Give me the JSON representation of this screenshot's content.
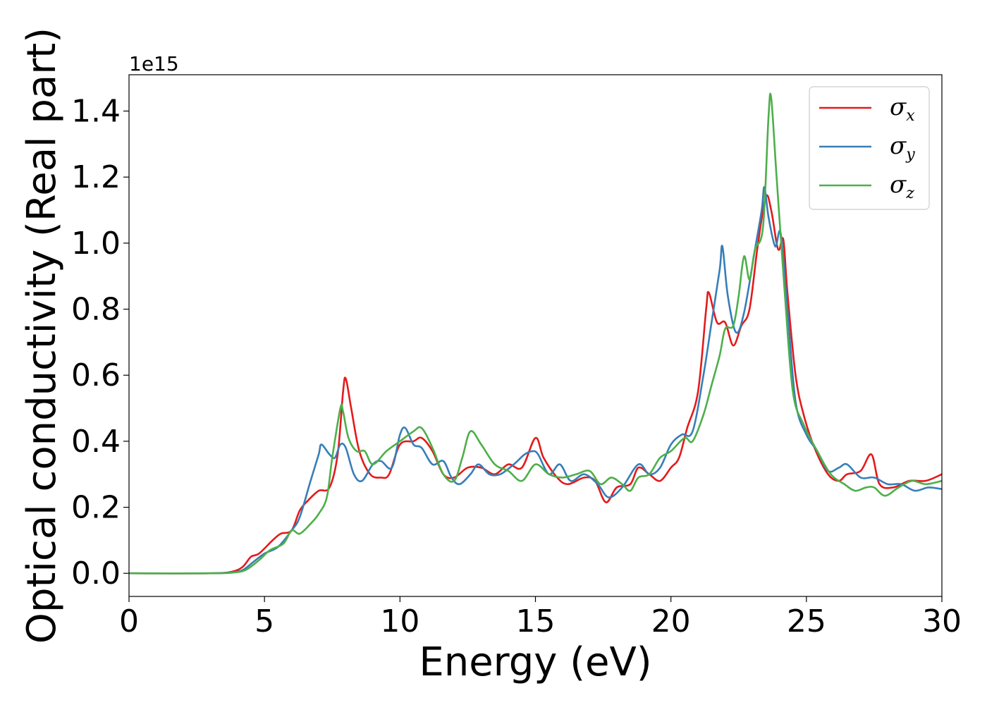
{
  "chart_data": {
    "type": "line",
    "xlabel": "Energy (eV)",
    "ylabel": "Optical conductivity (Real part)",
    "offset_text": "1e15",
    "xlim": [
      0,
      30
    ],
    "ylim": [
      -0.07,
      1.51
    ],
    "y_scale_factor": 1000000000000000.0,
    "x_ticks": [
      0,
      5,
      10,
      15,
      20,
      25,
      30
    ],
    "x_tick_labels": [
      "0",
      "5",
      "10",
      "15",
      "20",
      "25",
      "30"
    ],
    "y_ticks": [
      0.0,
      0.2,
      0.4,
      0.6,
      0.8,
      1.0,
      1.2,
      1.4
    ],
    "y_tick_labels": [
      "0.0",
      "0.2",
      "0.4",
      "0.6",
      "0.8",
      "1.0",
      "1.2",
      "1.4"
    ],
    "grid": false,
    "legend_position": "top-right",
    "series": [
      {
        "name": "σx",
        "symbol": "σ",
        "subscript": "x",
        "color": "#e41a1c",
        "points": [
          [
            0,
            0
          ],
          [
            3,
            0
          ],
          [
            3.8,
            0.005
          ],
          [
            4.2,
            0.02
          ],
          [
            4.5,
            0.05
          ],
          [
            4.8,
            0.06
          ],
          [
            5.3,
            0.1
          ],
          [
            5.6,
            0.12
          ],
          [
            6,
            0.13
          ],
          [
            6.3,
            0.19
          ],
          [
            6.6,
            0.22
          ],
          [
            7,
            0.25
          ],
          [
            7.4,
            0.26
          ],
          [
            7.7,
            0.36
          ],
          [
            7.9,
            0.55
          ],
          [
            8.0,
            0.59
          ],
          [
            8.2,
            0.5
          ],
          [
            8.5,
            0.37
          ],
          [
            8.9,
            0.3
          ],
          [
            9.3,
            0.29
          ],
          [
            9.6,
            0.3
          ],
          [
            10,
            0.39
          ],
          [
            10.5,
            0.4
          ],
          [
            10.8,
            0.41
          ],
          [
            11.2,
            0.37
          ],
          [
            11.6,
            0.3
          ],
          [
            12,
            0.29
          ],
          [
            12.5,
            0.32
          ],
          [
            13,
            0.32
          ],
          [
            13.5,
            0.3
          ],
          [
            14,
            0.33
          ],
          [
            14.5,
            0.32
          ],
          [
            15.0,
            0.41
          ],
          [
            15.3,
            0.35
          ],
          [
            15.8,
            0.29
          ],
          [
            16.2,
            0.27
          ],
          [
            16.8,
            0.29
          ],
          [
            17.2,
            0.28
          ],
          [
            17.6,
            0.215
          ],
          [
            18,
            0.26
          ],
          [
            18.5,
            0.27
          ],
          [
            18.8,
            0.32
          ],
          [
            19.2,
            0.3
          ],
          [
            19.6,
            0.28
          ],
          [
            20,
            0.32
          ],
          [
            20.3,
            0.35
          ],
          [
            20.6,
            0.44
          ],
          [
            21,
            0.55
          ],
          [
            21.3,
            0.8
          ],
          [
            21.4,
            0.85
          ],
          [
            21.7,
            0.76
          ],
          [
            22,
            0.76
          ],
          [
            22.3,
            0.69
          ],
          [
            22.6,
            0.75
          ],
          [
            22.9,
            0.8
          ],
          [
            23.2,
            0.99
          ],
          [
            23.5,
            1.14
          ],
          [
            23.7,
            1.1
          ],
          [
            23.9,
            1.0
          ],
          [
            24.0,
            0.98
          ],
          [
            24.15,
            1.01
          ],
          [
            24.3,
            0.85
          ],
          [
            24.6,
            0.6
          ],
          [
            24.9,
            0.48
          ],
          [
            25.3,
            0.38
          ],
          [
            25.8,
            0.3
          ],
          [
            26.2,
            0.28
          ],
          [
            26.5,
            0.3
          ],
          [
            27,
            0.31
          ],
          [
            27.4,
            0.36
          ],
          [
            27.7,
            0.27
          ],
          [
            28.2,
            0.26
          ],
          [
            28.8,
            0.28
          ],
          [
            29.4,
            0.28
          ],
          [
            30,
            0.3
          ]
        ]
      },
      {
        "name": "σy",
        "symbol": "σ",
        "subscript": "y",
        "color": "#377eb8",
        "points": [
          [
            0,
            0
          ],
          [
            3,
            0
          ],
          [
            3.8,
            0.003
          ],
          [
            4.2,
            0.01
          ],
          [
            4.6,
            0.035
          ],
          [
            5,
            0.06
          ],
          [
            5.5,
            0.08
          ],
          [
            6,
            0.13
          ],
          [
            6.3,
            0.17
          ],
          [
            6.7,
            0.28
          ],
          [
            7.0,
            0.36
          ],
          [
            7.1,
            0.39
          ],
          [
            7.4,
            0.36
          ],
          [
            7.6,
            0.35
          ],
          [
            7.8,
            0.39
          ],
          [
            8.0,
            0.38
          ],
          [
            8.3,
            0.3
          ],
          [
            8.6,
            0.28
          ],
          [
            9,
            0.33
          ],
          [
            9.3,
            0.34
          ],
          [
            9.7,
            0.32
          ],
          [
            10.0,
            0.42
          ],
          [
            10.2,
            0.44
          ],
          [
            10.5,
            0.39
          ],
          [
            10.8,
            0.38
          ],
          [
            11.2,
            0.33
          ],
          [
            11.6,
            0.34
          ],
          [
            11.9,
            0.29
          ],
          [
            12.2,
            0.27
          ],
          [
            12.6,
            0.3
          ],
          [
            12.9,
            0.33
          ],
          [
            13.3,
            0.3
          ],
          [
            13.7,
            0.3
          ],
          [
            14.2,
            0.33
          ],
          [
            14.6,
            0.36
          ],
          [
            14.9,
            0.37
          ],
          [
            15.1,
            0.36
          ],
          [
            15.5,
            0.3
          ],
          [
            15.9,
            0.33
          ],
          [
            16.3,
            0.28
          ],
          [
            16.8,
            0.3
          ],
          [
            17.3,
            0.27
          ],
          [
            17.7,
            0.23
          ],
          [
            18.2,
            0.26
          ],
          [
            18.8,
            0.33
          ],
          [
            19.2,
            0.3
          ],
          [
            19.6,
            0.32
          ],
          [
            20,
            0.39
          ],
          [
            20.4,
            0.42
          ],
          [
            20.8,
            0.43
          ],
          [
            21.2,
            0.6
          ],
          [
            21.5,
            0.76
          ],
          [
            21.8,
            0.92
          ],
          [
            21.9,
            0.99
          ],
          [
            22.1,
            0.84
          ],
          [
            22.4,
            0.73
          ],
          [
            22.7,
            0.79
          ],
          [
            23.1,
            0.98
          ],
          [
            23.35,
            1.1
          ],
          [
            23.45,
            1.17
          ],
          [
            23.6,
            1.08
          ],
          [
            23.85,
            0.99
          ],
          [
            24.05,
            1.03
          ],
          [
            24.3,
            0.8
          ],
          [
            24.6,
            0.52
          ],
          [
            25,
            0.42
          ],
          [
            25.4,
            0.37
          ],
          [
            25.8,
            0.31
          ],
          [
            26.2,
            0.32
          ],
          [
            26.5,
            0.33
          ],
          [
            27,
            0.29
          ],
          [
            27.5,
            0.29
          ],
          [
            28,
            0.27
          ],
          [
            28.5,
            0.27
          ],
          [
            29,
            0.25
          ],
          [
            29.5,
            0.26
          ],
          [
            30,
            0.255
          ]
        ]
      },
      {
        "name": "σz",
        "symbol": "σ",
        "subscript": "z",
        "color": "#4daf4a",
        "points": [
          [
            0,
            0
          ],
          [
            3,
            0
          ],
          [
            3.8,
            0.002
          ],
          [
            4.3,
            0.01
          ],
          [
            4.8,
            0.04
          ],
          [
            5.2,
            0.07
          ],
          [
            5.7,
            0.09
          ],
          [
            6.0,
            0.13
          ],
          [
            6.3,
            0.12
          ],
          [
            6.7,
            0.15
          ],
          [
            7.0,
            0.18
          ],
          [
            7.3,
            0.23
          ],
          [
            7.5,
            0.35
          ],
          [
            7.8,
            0.5
          ],
          [
            7.9,
            0.49
          ],
          [
            8.1,
            0.41
          ],
          [
            8.4,
            0.37
          ],
          [
            8.7,
            0.37
          ],
          [
            9,
            0.33
          ],
          [
            9.5,
            0.37
          ],
          [
            10,
            0.4
          ],
          [
            10.5,
            0.43
          ],
          [
            10.8,
            0.44
          ],
          [
            11.2,
            0.38
          ],
          [
            11.6,
            0.3
          ],
          [
            12,
            0.28
          ],
          [
            12.3,
            0.35
          ],
          [
            12.6,
            0.43
          ],
          [
            13,
            0.39
          ],
          [
            13.5,
            0.33
          ],
          [
            14,
            0.31
          ],
          [
            14.5,
            0.28
          ],
          [
            15.0,
            0.33
          ],
          [
            15.5,
            0.3
          ],
          [
            16,
            0.29
          ],
          [
            16.5,
            0.3
          ],
          [
            17,
            0.31
          ],
          [
            17.4,
            0.27
          ],
          [
            17.8,
            0.29
          ],
          [
            18.2,
            0.27
          ],
          [
            18.5,
            0.25
          ],
          [
            18.8,
            0.29
          ],
          [
            19.2,
            0.3
          ],
          [
            19.6,
            0.35
          ],
          [
            20,
            0.37
          ],
          [
            20.5,
            0.41
          ],
          [
            20.8,
            0.4
          ],
          [
            21.2,
            0.48
          ],
          [
            21.5,
            0.57
          ],
          [
            21.8,
            0.66
          ],
          [
            22.0,
            0.74
          ],
          [
            22.3,
            0.75
          ],
          [
            22.5,
            0.84
          ],
          [
            22.7,
            0.96
          ],
          [
            22.9,
            0.89
          ],
          [
            23.1,
            0.98
          ],
          [
            23.4,
            1.05
          ],
          [
            23.6,
            1.38
          ],
          [
            23.7,
            1.44
          ],
          [
            23.9,
            1.2
          ],
          [
            24.2,
            0.85
          ],
          [
            24.5,
            0.55
          ],
          [
            24.9,
            0.45
          ],
          [
            25.4,
            0.37
          ],
          [
            25.9,
            0.3
          ],
          [
            26.4,
            0.27
          ],
          [
            26.8,
            0.25
          ],
          [
            27.2,
            0.26
          ],
          [
            27.5,
            0.26
          ],
          [
            27.9,
            0.235
          ],
          [
            28.4,
            0.26
          ],
          [
            28.9,
            0.28
          ],
          [
            29.4,
            0.27
          ],
          [
            30,
            0.28
          ]
        ]
      }
    ]
  }
}
